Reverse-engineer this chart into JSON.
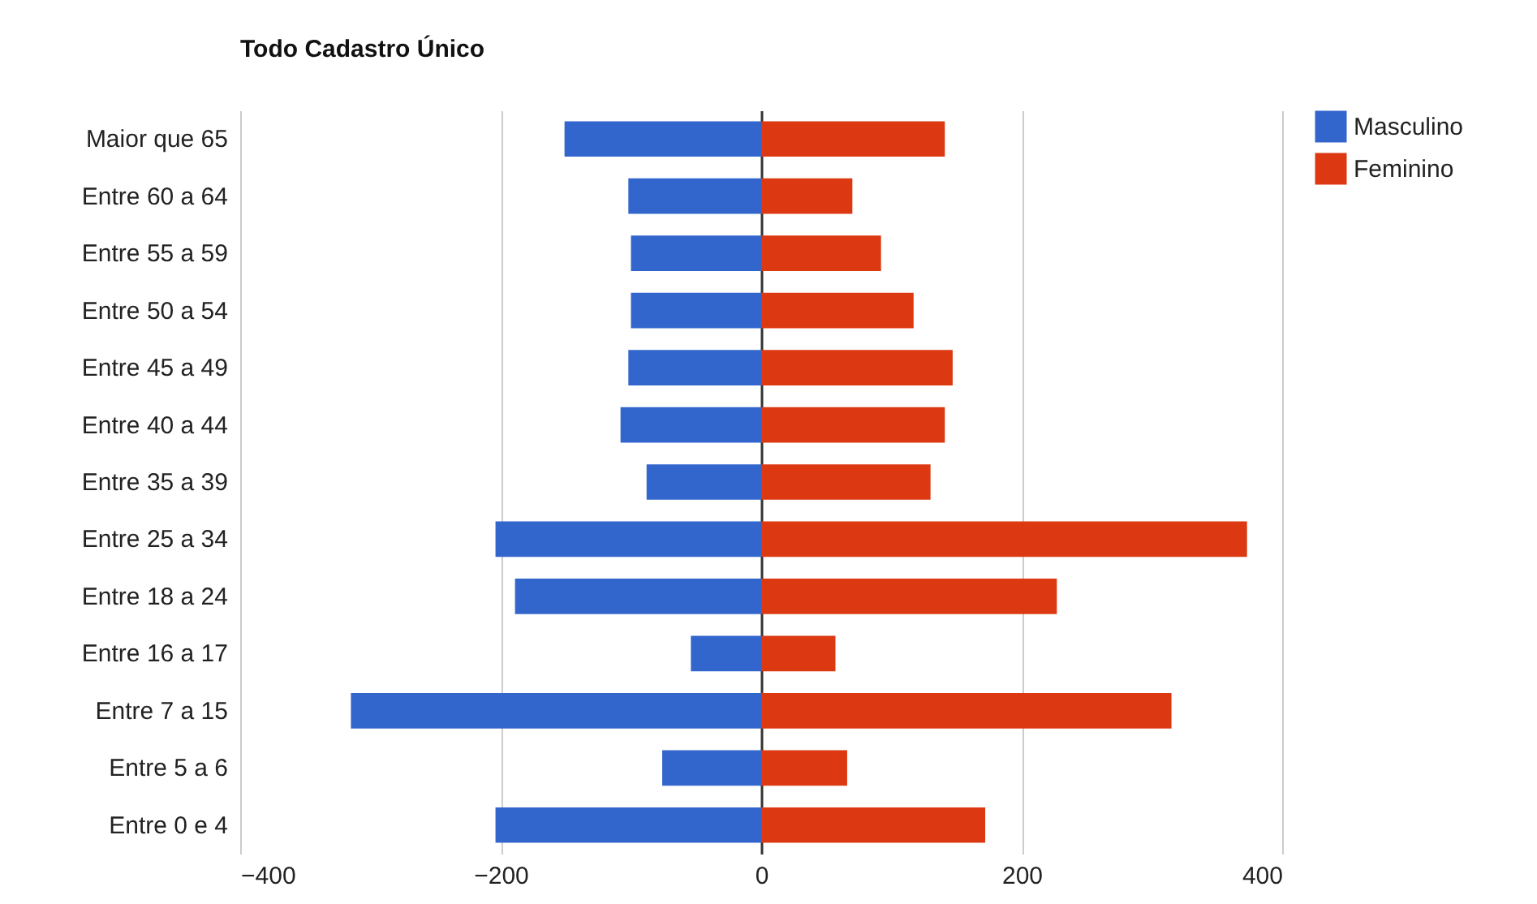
{
  "chart_data": {
    "type": "bar",
    "title": "Todo Cadastro Único",
    "orientation": "horizontal",
    "stacked": true,
    "categories": [
      "Maior que 65",
      "Entre 60 a 64",
      "Entre 55 a 59",
      "Entre 50 a 54",
      "Entre 45 a 49",
      "Entre 40 a 44",
      "Entre 35 a 39",
      "Entre 25 a 34",
      "Entre 18 a 24",
      "Entre 16 a 17",
      "Entre 7 a 15",
      "Entre 5 a 6",
      "Entre 0 e 4"
    ],
    "series": [
      {
        "name": "Masculino",
        "color": "#3366cc",
        "values": [
          -151,
          -102,
          -100,
          -100,
          -102,
          -108,
          -88,
          -204,
          -189,
          -54,
          -315,
          -76,
          -204
        ]
      },
      {
        "name": "Feminino",
        "color": "#dc3912",
        "values": [
          141,
          70,
          92,
          117,
          147,
          141,
          130,
          373,
          227,
          57,
          315,
          66,
          172
        ]
      }
    ],
    "xlim": [
      -400,
      400
    ],
    "xticks": [
      -400,
      -200,
      0,
      200,
      400
    ],
    "grid": "x",
    "legend": "top right"
  }
}
